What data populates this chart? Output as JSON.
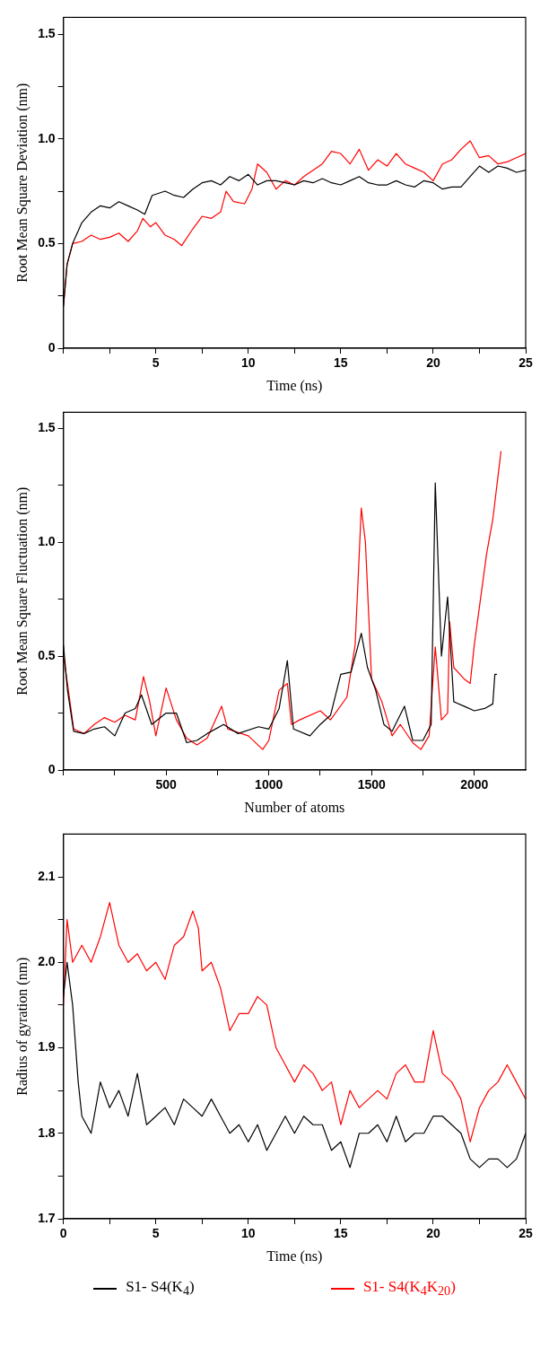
{
  "chart_data": [
    {
      "type": "line",
      "xlabel": "Time (ns)",
      "ylabel": "Root Mean Square Deviation (nm)",
      "xlim": [
        0,
        25
      ],
      "ylim": [
        0,
        1.58
      ],
      "xticks": [
        {
          "value": 0,
          "label": null
        },
        {
          "value": 2.5,
          "label": null
        },
        5,
        {
          "value": 7.5,
          "label": null
        },
        10,
        {
          "value": 12.5,
          "label": null
        },
        15,
        {
          "value": 17.5,
          "label": null
        },
        20,
        {
          "value": 22.5,
          "label": null
        },
        25
      ],
      "yticks": [
        0,
        {
          "value": 0.25,
          "label": null
        },
        0.5,
        {
          "value": 0.75,
          "label": null
        },
        {
          "value": 1,
          "label": "1.0"
        },
        {
          "value": 1.25,
          "label": null
        },
        1.5
      ],
      "grid": false,
      "legend": false,
      "marker": "none",
      "line_style": "solid",
      "series": [
        {
          "color": "#000000",
          "x": [
            0,
            0.2,
            0.5,
            1,
            1.5,
            2,
            2.5,
            3,
            3.5,
            4,
            4.4,
            4.8,
            5.5,
            6,
            6.5,
            7,
            7.5,
            8,
            8.5,
            9,
            9.5,
            10,
            10.5,
            11,
            11.5,
            12,
            12.5,
            13,
            13.5,
            14,
            14.5,
            15,
            15.5,
            16,
            16.5,
            17,
            17.5,
            18,
            18.5,
            19,
            19.5,
            20,
            20.5,
            21,
            21.5,
            22,
            22.5,
            23,
            23.5,
            24,
            24.5,
            25
          ],
          "values": [
            0.2,
            0.4,
            0.5,
            0.6,
            0.65,
            0.68,
            0.67,
            0.7,
            0.68,
            0.66,
            0.64,
            0.73,
            0.75,
            0.73,
            0.72,
            0.76,
            0.79,
            0.8,
            0.78,
            0.82,
            0.8,
            0.83,
            0.78,
            0.8,
            0.8,
            0.79,
            0.78,
            0.8,
            0.79,
            0.81,
            0.79,
            0.78,
            0.8,
            0.82,
            0.79,
            0.78,
            0.78,
            0.8,
            0.78,
            0.77,
            0.8,
            0.79,
            0.76,
            0.77,
            0.77,
            0.82,
            0.87,
            0.84,
            0.87,
            0.86,
            0.84,
            0.85
          ]
        },
        {
          "color": "#ff0000",
          "x": [
            0,
            0.2,
            0.5,
            1,
            1.5,
            2,
            2.5,
            3,
            3.5,
            4,
            4.3,
            4.7,
            5,
            5.5,
            6,
            6.4,
            7,
            7.5,
            8,
            8.5,
            8.8,
            9.2,
            9.8,
            10.2,
            10.5,
            11,
            11.5,
            12,
            12.5,
            13,
            13.5,
            14,
            14.5,
            15,
            15.5,
            16,
            16.5,
            17,
            17.5,
            18,
            18.5,
            19,
            19.5,
            20,
            20.5,
            21,
            21.5,
            22,
            22.5,
            23,
            23.5,
            24,
            24.5,
            25
          ],
          "values": [
            0.2,
            0.4,
            0.5,
            0.51,
            0.54,
            0.52,
            0.53,
            0.55,
            0.51,
            0.56,
            0.62,
            0.58,
            0.6,
            0.54,
            0.52,
            0.49,
            0.57,
            0.63,
            0.62,
            0.65,
            0.75,
            0.7,
            0.69,
            0.76,
            0.88,
            0.84,
            0.76,
            0.8,
            0.78,
            0.82,
            0.85,
            0.88,
            0.94,
            0.93,
            0.88,
            0.95,
            0.85,
            0.9,
            0.87,
            0.93,
            0.88,
            0.86,
            0.84,
            0.8,
            0.88,
            0.9,
            0.95,
            0.99,
            0.91,
            0.92,
            0.88,
            0.89,
            0.91,
            0.93
          ]
        }
      ]
    },
    {
      "type": "line",
      "xlabel": "Number of atoms",
      "ylabel": "Root Mean Square Fluctuation (nm)",
      "xlim": [
        0,
        2250
      ],
      "ylim": [
        0,
        1.57
      ],
      "xticks": [
        {
          "value": 0,
          "label": null
        },
        {
          "value": 250,
          "label": null
        },
        500,
        {
          "value": 750,
          "label": null
        },
        1000,
        {
          "value": 1250,
          "label": null
        },
        1500,
        {
          "value": 1750,
          "label": null
        },
        2000
      ],
      "yticks": [
        0,
        {
          "value": 0.25,
          "label": null
        },
        0.5,
        {
          "value": 0.75,
          "label": null
        },
        {
          "value": 1,
          "label": "1.0"
        },
        {
          "value": 1.25,
          "label": null
        },
        1.5
      ],
      "grid": false,
      "legend": false,
      "marker": "none",
      "line_style": "solid",
      "series": [
        {
          "color": "#000000",
          "x": [
            0,
            20,
            50,
            100,
            150,
            200,
            250,
            300,
            350,
            380,
            430,
            500,
            550,
            600,
            650,
            700,
            780,
            850,
            950,
            1000,
            1050,
            1090,
            1120,
            1200,
            1250,
            1300,
            1350,
            1400,
            1450,
            1480,
            1520,
            1560,
            1600,
            1660,
            1700,
            1750,
            1790,
            1810,
            1840,
            1870,
            1900,
            1950,
            2000,
            2050,
            2090,
            2100,
            2110
          ],
          "values": [
            0.55,
            0.35,
            0.17,
            0.16,
            0.18,
            0.19,
            0.15,
            0.25,
            0.27,
            0.33,
            0.2,
            0.25,
            0.25,
            0.12,
            0.13,
            0.16,
            0.2,
            0.16,
            0.19,
            0.18,
            0.27,
            0.48,
            0.18,
            0.15,
            0.2,
            0.24,
            0.42,
            0.43,
            0.6,
            0.45,
            0.35,
            0.2,
            0.17,
            0.28,
            0.13,
            0.13,
            0.2,
            1.26,
            0.5,
            0.76,
            0.3,
            0.28,
            0.26,
            0.27,
            0.29,
            0.42,
            0.42
          ]
        },
        {
          "color": "#ff0000",
          "x": [
            0,
            20,
            50,
            100,
            150,
            200,
            250,
            300,
            350,
            390,
            420,
            450,
            500,
            550,
            600,
            650,
            700,
            770,
            800,
            900,
            970,
            1000,
            1050,
            1090,
            1110,
            1150,
            1250,
            1300,
            1380,
            1420,
            1450,
            1470,
            1500,
            1550,
            1600,
            1640,
            1700,
            1740,
            1780,
            1810,
            1840,
            1870,
            1880,
            1900,
            1950,
            1980,
            2000,
            2030,
            2060,
            2090,
            2110,
            2130
          ],
          "values": [
            0.5,
            0.38,
            0.18,
            0.16,
            0.2,
            0.23,
            0.21,
            0.24,
            0.22,
            0.41,
            0.3,
            0.15,
            0.36,
            0.22,
            0.14,
            0.11,
            0.14,
            0.28,
            0.18,
            0.15,
            0.09,
            0.13,
            0.35,
            0.38,
            0.2,
            0.22,
            0.26,
            0.22,
            0.32,
            0.55,
            1.15,
            1.0,
            0.4,
            0.3,
            0.15,
            0.2,
            0.12,
            0.09,
            0.15,
            0.54,
            0.22,
            0.25,
            0.65,
            0.45,
            0.4,
            0.38,
            0.55,
            0.75,
            0.95,
            1.1,
            1.25,
            1.4
          ]
        }
      ]
    },
    {
      "type": "line",
      "xlabel": "Time (ns)",
      "ylabel": "Radius of gyration (nm)",
      "xlim": [
        0,
        25
      ],
      "ylim": [
        1.7,
        2.15
      ],
      "xticks": [
        0,
        {
          "value": 2.5,
          "label": null
        },
        5,
        {
          "value": 7.5,
          "label": null
        },
        10,
        {
          "value": 12.5,
          "label": null
        },
        15,
        {
          "value": 17.5,
          "label": null
        },
        20,
        {
          "value": 22.5,
          "label": null
        },
        25
      ],
      "yticks": [
        1.7,
        {
          "value": 1.75,
          "label": null
        },
        1.8,
        {
          "value": 1.85,
          "label": null
        },
        1.9,
        {
          "value": 1.95,
          "label": null
        },
        {
          "value": 2,
          "label": "2.0"
        },
        {
          "value": 2.05,
          "label": null
        },
        2.1
      ],
      "grid": false,
      "legend": "bottom",
      "marker": "none",
      "line_style": "solid",
      "series": [
        {
          "name": "S1- S4(K$_{4}$)",
          "color": "#000000",
          "x": [
            0,
            0.2,
            0.5,
            0.8,
            1,
            1.5,
            2,
            2.5,
            3,
            3.5,
            4,
            4.5,
            5,
            5.5,
            6,
            6.5,
            7,
            7.5,
            8,
            8.5,
            9,
            9.5,
            10,
            10.5,
            11,
            11.5,
            12,
            12.5,
            13,
            13.5,
            14,
            14.5,
            15,
            15.5,
            16,
            16.5,
            17,
            17.5,
            18,
            18.5,
            19,
            19.5,
            20,
            20.5,
            21,
            21.5,
            22,
            22.5,
            23,
            23.5,
            24,
            24.5,
            25
          ],
          "values": [
            1.96,
            2.0,
            1.95,
            1.86,
            1.82,
            1.8,
            1.86,
            1.83,
            1.85,
            1.82,
            1.87,
            1.81,
            1.82,
            1.83,
            1.81,
            1.84,
            1.83,
            1.82,
            1.84,
            1.82,
            1.8,
            1.81,
            1.79,
            1.81,
            1.78,
            1.8,
            1.82,
            1.8,
            1.82,
            1.81,
            1.81,
            1.78,
            1.79,
            1.76,
            1.8,
            1.8,
            1.81,
            1.79,
            1.82,
            1.79,
            1.8,
            1.8,
            1.82,
            1.82,
            1.81,
            1.8,
            1.77,
            1.76,
            1.77,
            1.77,
            1.76,
            1.77,
            1.8
          ]
        },
        {
          "name": "S1- S4(K$_{4}$K$_{20}$)",
          "color": "#ff0000",
          "x": [
            0,
            0.2,
            0.5,
            1,
            1.5,
            2,
            2.5,
            3,
            3.5,
            4,
            4.5,
            5,
            5.5,
            6,
            6.5,
            7,
            7.3,
            7.5,
            8,
            8.5,
            9,
            9.5,
            10,
            10.5,
            11,
            11.5,
            12,
            12.5,
            13,
            13.5,
            14,
            14.5,
            15,
            15.5,
            16,
            16.5,
            17,
            17.5,
            18,
            18.5,
            19,
            19.5,
            20,
            20.5,
            21,
            21.5,
            22,
            22.5,
            23,
            23.5,
            24,
            24.5,
            25
          ],
          "values": [
            1.95,
            2.05,
            2.0,
            2.02,
            2.0,
            2.03,
            2.07,
            2.02,
            2.0,
            2.01,
            1.99,
            2.0,
            1.98,
            2.02,
            2.03,
            2.06,
            2.04,
            1.99,
            2.0,
            1.97,
            1.92,
            1.94,
            1.94,
            1.96,
            1.95,
            1.9,
            1.88,
            1.86,
            1.88,
            1.87,
            1.85,
            1.86,
            1.81,
            1.85,
            1.83,
            1.84,
            1.85,
            1.84,
            1.87,
            1.88,
            1.86,
            1.86,
            1.92,
            1.87,
            1.86,
            1.84,
            1.79,
            1.83,
            1.85,
            1.86,
            1.88,
            1.86,
            1.84
          ]
        }
      ]
    }
  ]
}
